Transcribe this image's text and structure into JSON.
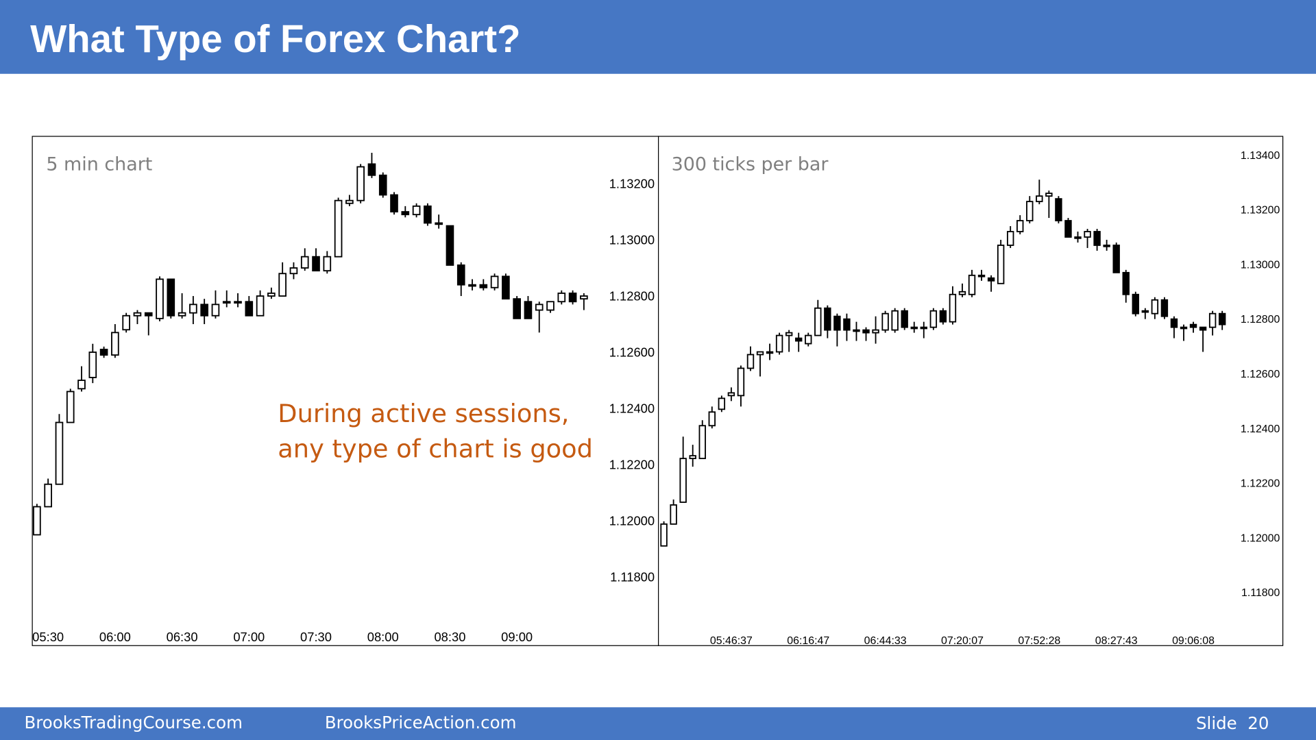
{
  "header": {
    "title": "What Type of Forex Chart?"
  },
  "footer": {
    "left": "BrooksTradingCourse.com",
    "center": "BrooksPriceAction.com",
    "slide": "Slide  20"
  },
  "chart_data": [
    {
      "type": "candlestick",
      "title": "5 min chart",
      "annotations": [
        "During active sessions,",
        "any type of chart is good"
      ],
      "categories": [
        null,
        "05:30",
        null,
        null,
        null,
        null,
        null,
        "06:00",
        null,
        null,
        null,
        null,
        null,
        "06:30",
        null,
        null,
        null,
        null,
        null,
        "07:00",
        null,
        null,
        null,
        null,
        null,
        "07:30",
        null,
        null,
        null,
        null,
        null,
        "08:00",
        null,
        null,
        null,
        null,
        null,
        "08:30",
        null,
        null,
        null,
        null,
        null,
        "09:00",
        null,
        null,
        null,
        null,
        null,
        null
      ],
      "open": [
        1.1195,
        1.1205,
        1.1213,
        1.1235,
        1.1247,
        1.1251,
        1.1261,
        1.1259,
        1.1268,
        1.1273,
        1.1274,
        1.1272,
        1.1286,
        1.1273,
        1.1274,
        1.1277,
        1.1273,
        1.1278,
        1.1278,
        1.1278,
        1.1273,
        1.128,
        1.128,
        1.1288,
        1.129,
        1.1294,
        1.1289,
        1.1294,
        1.1313,
        1.1314,
        1.1327,
        1.1323,
        1.1316,
        1.131,
        1.1309,
        1.1312,
        1.1306,
        1.1305,
        1.1291,
        1.1284,
        1.1284,
        1.1283,
        1.1287,
        1.1279,
        1.1278,
        1.1275,
        1.1275,
        1.1278,
        1.1281,
        1.1279
      ],
      "high": [
        1.1206,
        1.1215,
        1.1238,
        1.1247,
        1.1255,
        1.1263,
        1.1262,
        1.127,
        1.1274,
        1.1275,
        1.1274,
        1.1287,
        1.1286,
        1.1281,
        1.128,
        1.1279,
        1.1282,
        1.1282,
        1.1281,
        1.128,
        1.1282,
        1.1283,
        1.1292,
        1.1292,
        1.1297,
        1.1297,
        1.1296,
        1.1315,
        1.1316,
        1.1327,
        1.1331,
        1.1324,
        1.1317,
        1.1312,
        1.1313,
        1.1313,
        1.1309,
        1.1305,
        1.1292,
        1.1286,
        1.1286,
        1.1288,
        1.1288,
        1.128,
        1.128,
        1.1278,
        1.1278,
        1.1282,
        1.1282,
        1.1281
      ],
      "low": [
        1.1195,
        1.1205,
        1.1213,
        1.1235,
        1.1246,
        1.1249,
        1.1258,
        1.1258,
        1.1267,
        1.127,
        1.1266,
        1.1271,
        1.1272,
        1.1272,
        1.127,
        1.127,
        1.1272,
        1.1276,
        1.1276,
        1.1273,
        1.1273,
        1.1279,
        1.128,
        1.1286,
        1.1289,
        1.1289,
        1.1288,
        1.1294,
        1.1312,
        1.1313,
        1.1322,
        1.1315,
        1.1309,
        1.1308,
        1.1308,
        1.1305,
        1.1304,
        1.1291,
        1.128,
        1.1282,
        1.1282,
        1.1282,
        1.1279,
        1.1272,
        1.1272,
        1.1267,
        1.1274,
        1.1277,
        1.1277,
        1.1275
      ],
      "close": [
        1.1205,
        1.1213,
        1.1235,
        1.1246,
        1.125,
        1.126,
        1.1259,
        1.1267,
        1.1273,
        1.1274,
        1.1273,
        1.1286,
        1.1273,
        1.1274,
        1.1277,
        1.1273,
        1.1277,
        1.1278,
        1.1278,
        1.1273,
        1.128,
        1.1281,
        1.1288,
        1.129,
        1.1294,
        1.1289,
        1.1294,
        1.1314,
        1.1314,
        1.1326,
        1.1323,
        1.1316,
        1.131,
        1.1309,
        1.1312,
        1.1306,
        1.1306,
        1.1291,
        1.1284,
        1.1284,
        1.1283,
        1.1287,
        1.1279,
        1.1272,
        1.1272,
        1.1277,
        1.1278,
        1.1281,
        1.1278,
        1.128
      ],
      "up_color": "#ffffff",
      "down_color": "#000000",
      "ylim": [
        1.1156,
        1.1337
      ],
      "yticks": [
        {
          "value": 1.132,
          "label": "1.13200"
        },
        {
          "value": 1.13,
          "label": "1.13000"
        },
        {
          "value": 1.128,
          "label": "1.12800"
        },
        {
          "value": 1.126,
          "label": "1.12600"
        },
        {
          "value": 1.124,
          "label": "1.12400"
        },
        {
          "value": 1.122,
          "label": "1.12200"
        },
        {
          "value": 1.12,
          "label": "1.12000"
        },
        {
          "value": 1.118,
          "label": "1.11800"
        }
      ],
      "grid": false
    },
    {
      "type": "candlestick",
      "title": "300 ticks per bar",
      "categories": [
        null,
        null,
        null,
        null,
        null,
        null,
        null,
        "05:46:37",
        null,
        null,
        null,
        null,
        null,
        null,
        null,
        "06:16:47",
        null,
        null,
        null,
        null,
        null,
        null,
        null,
        "06:44:33",
        null,
        null,
        null,
        null,
        null,
        null,
        null,
        "07:20:07",
        null,
        null,
        null,
        null,
        null,
        null,
        null,
        "07:52:28",
        null,
        null,
        null,
        null,
        null,
        null,
        null,
        "08:27:43",
        null,
        null,
        null,
        null,
        null,
        null,
        null,
        "09:06:08",
        null,
        null,
        null
      ],
      "open": [
        1.1197,
        1.1205,
        1.1213,
        1.1229,
        1.1229,
        1.1241,
        1.1247,
        1.1252,
        1.1252,
        1.1262,
        1.1267,
        1.1268,
        1.1268,
        1.1274,
        1.1273,
        1.1271,
        1.1274,
        1.1284,
        1.1281,
        1.128,
        1.1276,
        1.1276,
        1.1275,
        1.1276,
        1.1276,
        1.1283,
        1.1277,
        1.1277,
        1.1277,
        1.1283,
        1.1279,
        1.1289,
        1.1289,
        1.1296,
        1.1295,
        1.1293,
        1.1307,
        1.1312,
        1.1316,
        1.1323,
        1.1325,
        1.1324,
        1.1316,
        1.131,
        1.131,
        1.1312,
        1.1307,
        1.1307,
        1.1297,
        1.1289,
        1.1283,
        1.1282,
        1.1287,
        1.128,
        1.1277,
        1.1278,
        1.1277,
        1.1277,
        1.1282
      ],
      "high": [
        1.1206,
        1.1214,
        1.1237,
        1.1234,
        1.1243,
        1.1248,
        1.1252,
        1.1255,
        1.1263,
        1.127,
        1.1268,
        1.1271,
        1.1275,
        1.1276,
        1.1275,
        1.1275,
        1.1287,
        1.1285,
        1.1282,
        1.1282,
        1.1279,
        1.1277,
        1.1281,
        1.1283,
        1.1284,
        1.1284,
        1.1279,
        1.1279,
        1.1284,
        1.1284,
        1.1292,
        1.1293,
        1.1298,
        1.1298,
        1.1296,
        1.1309,
        1.1314,
        1.1318,
        1.1325,
        1.1331,
        1.1327,
        1.1325,
        1.1317,
        1.1312,
        1.1313,
        1.1313,
        1.1309,
        1.1308,
        1.1298,
        1.129,
        1.1284,
        1.1288,
        1.1288,
        1.1281,
        1.1278,
        1.1279,
        1.1277,
        1.1283,
        1.1283
      ],
      "low": [
        1.1197,
        1.1205,
        1.1213,
        1.1226,
        1.1229,
        1.124,
        1.1246,
        1.125,
        1.1248,
        1.1261,
        1.1259,
        1.1265,
        1.1267,
        1.1268,
        1.1268,
        1.127,
        1.1274,
        1.1273,
        1.127,
        1.1272,
        1.1272,
        1.1272,
        1.1271,
        1.1275,
        1.1275,
        1.1276,
        1.1275,
        1.1273,
        1.1276,
        1.1278,
        1.1278,
        1.1288,
        1.1288,
        1.1294,
        1.129,
        1.1293,
        1.1306,
        1.1311,
        1.1315,
        1.1322,
        1.1317,
        1.1315,
        1.131,
        1.1308,
        1.1306,
        1.1305,
        1.1305,
        1.1297,
        1.1286,
        1.1281,
        1.128,
        1.128,
        1.128,
        1.1273,
        1.1272,
        1.1275,
        1.1268,
        1.1274,
        1.1276
      ],
      "close": [
        1.1205,
        1.1212,
        1.1229,
        1.123,
        1.1241,
        1.1246,
        1.1251,
        1.1253,
        1.1262,
        1.1267,
        1.1268,
        1.1268,
        1.1274,
        1.1275,
        1.1272,
        1.1274,
        1.1284,
        1.1276,
        1.1276,
        1.1276,
        1.1276,
        1.1275,
        1.1276,
        1.1282,
        1.1283,
        1.1277,
        1.1277,
        1.1277,
        1.1283,
        1.1279,
        1.1289,
        1.129,
        1.1296,
        1.1296,
        1.1294,
        1.1307,
        1.1312,
        1.1316,
        1.1323,
        1.1325,
        1.1326,
        1.1316,
        1.131,
        1.131,
        1.1312,
        1.1307,
        1.1307,
        1.1297,
        1.1289,
        1.1282,
        1.1283,
        1.1287,
        1.1281,
        1.1277,
        1.1277,
        1.1277,
        1.1276,
        1.1282,
        1.1278
      ],
      "up_color": "#ffffff",
      "down_color": "#000000",
      "ylim": [
        1.1161,
        1.1347
      ],
      "yticks": [
        {
          "value": 1.134,
          "label": "1.13400"
        },
        {
          "value": 1.132,
          "label": "1.13200"
        },
        {
          "value": 1.13,
          "label": "1.13000"
        },
        {
          "value": 1.128,
          "label": "1.12800"
        },
        {
          "value": 1.126,
          "label": "1.12600"
        },
        {
          "value": 1.124,
          "label": "1.12400"
        },
        {
          "value": 1.122,
          "label": "1.12200"
        },
        {
          "value": 1.12,
          "label": "1.12000"
        },
        {
          "value": 1.118,
          "label": "1.11800"
        }
      ],
      "grid": false
    }
  ]
}
